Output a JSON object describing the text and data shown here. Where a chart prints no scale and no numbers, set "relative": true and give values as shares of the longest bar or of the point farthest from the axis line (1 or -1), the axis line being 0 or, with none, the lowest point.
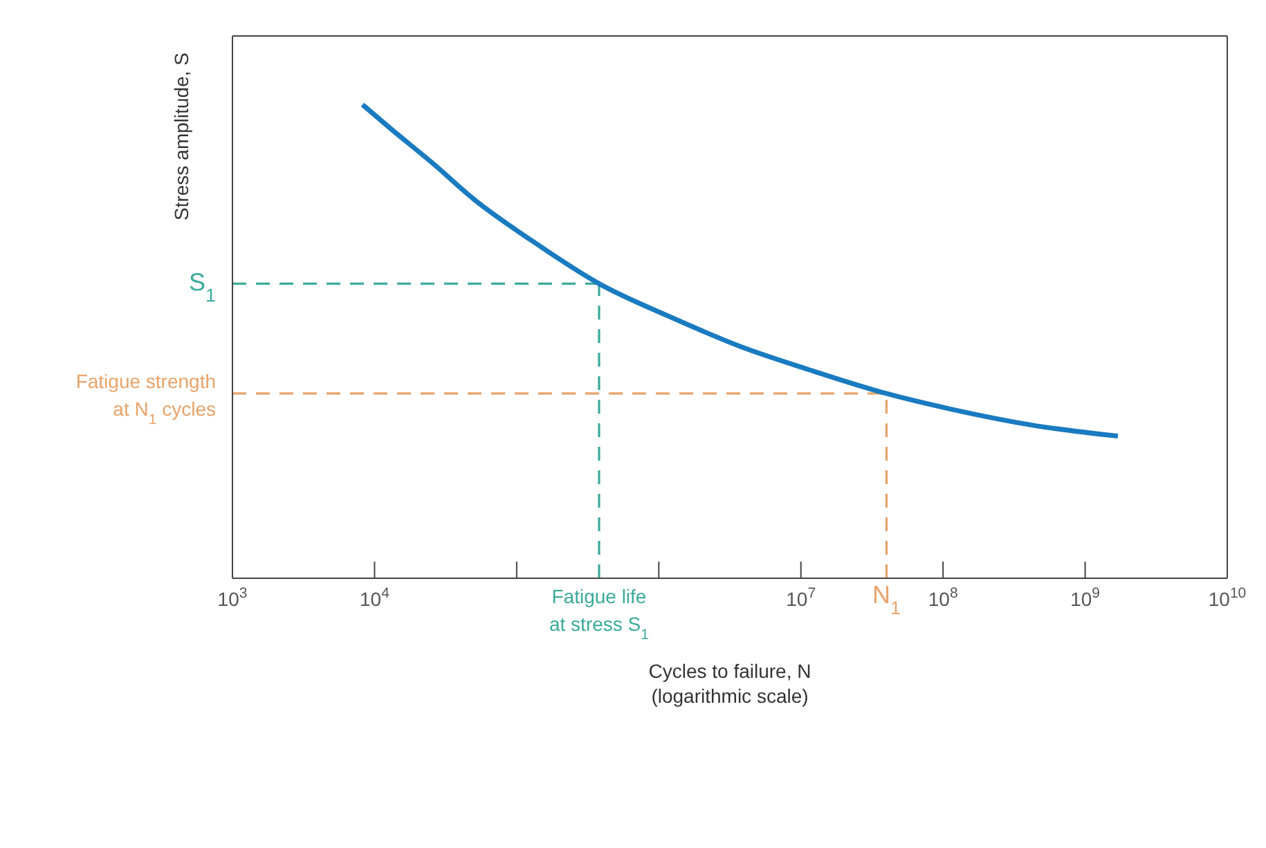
{
  "chart_data": {
    "type": "line",
    "relative": true,
    "xlabel": "Cycles to failure, N (logarithmic scale)",
    "ylabel": "Stress amplitude, S",
    "log": "x",
    "marker": "none",
    "line_style": "solid",
    "x": [
      8222,
      12900,
      25700,
      50100,
      126000,
      380000,
      1200000,
      3700000,
      11500000,
      40000000,
      110000000,
      430000000,
      1700000000
    ],
    "series": [
      {
        "color": "#1a7bc0",
        "values": [
          1.0,
          0.95,
          0.876,
          0.8,
          0.714,
          0.622,
          0.552,
          0.49,
          0.44,
          0.39,
          0.358,
          0.323,
          0.3
        ]
      }
    ],
    "xlim": [
      1000,
      10000000000
    ],
    "xticks": [
      {
        "value": 1000,
        "label": "10$^{3}$"
      },
      {
        "value": 10000,
        "label": "10$^{4}$"
      },
      {
        "value": 100000,
        "label": null
      },
      {
        "value": 1000000,
        "label": null
      },
      {
        "value": 10000000,
        "label": "10$^{7}$"
      },
      {
        "value": 100000000,
        "label": "10$^{8}$"
      },
      {
        "value": 1000000000,
        "label": "10$^{9}$"
      },
      {
        "value": 10000000000,
        "label": "10$^{10}$"
      }
    ],
    "ref_lines": [
      {
        "axis": "y",
        "value": 0.622,
        "label": "S$_{1}$",
        "color": "#3aaa9a",
        "line_style": "dashed"
      },
      {
        "axis": "x",
        "value": 380000,
        "label": "Fatigue life at stress S$_{1}$",
        "color": "#3aaa9a",
        "line_style": "dashed"
      },
      {
        "axis": "y",
        "value": 0.39,
        "label": "Fatigue strength at N$_{1}$ cycles",
        "color": "#e8a36a",
        "line_style": "dashed"
      },
      {
        "axis": "x",
        "value": 40000000,
        "label": "N$_{1}$",
        "color": "#e8a36a",
        "line_style": "dashed"
      }
    ]
  }
}
